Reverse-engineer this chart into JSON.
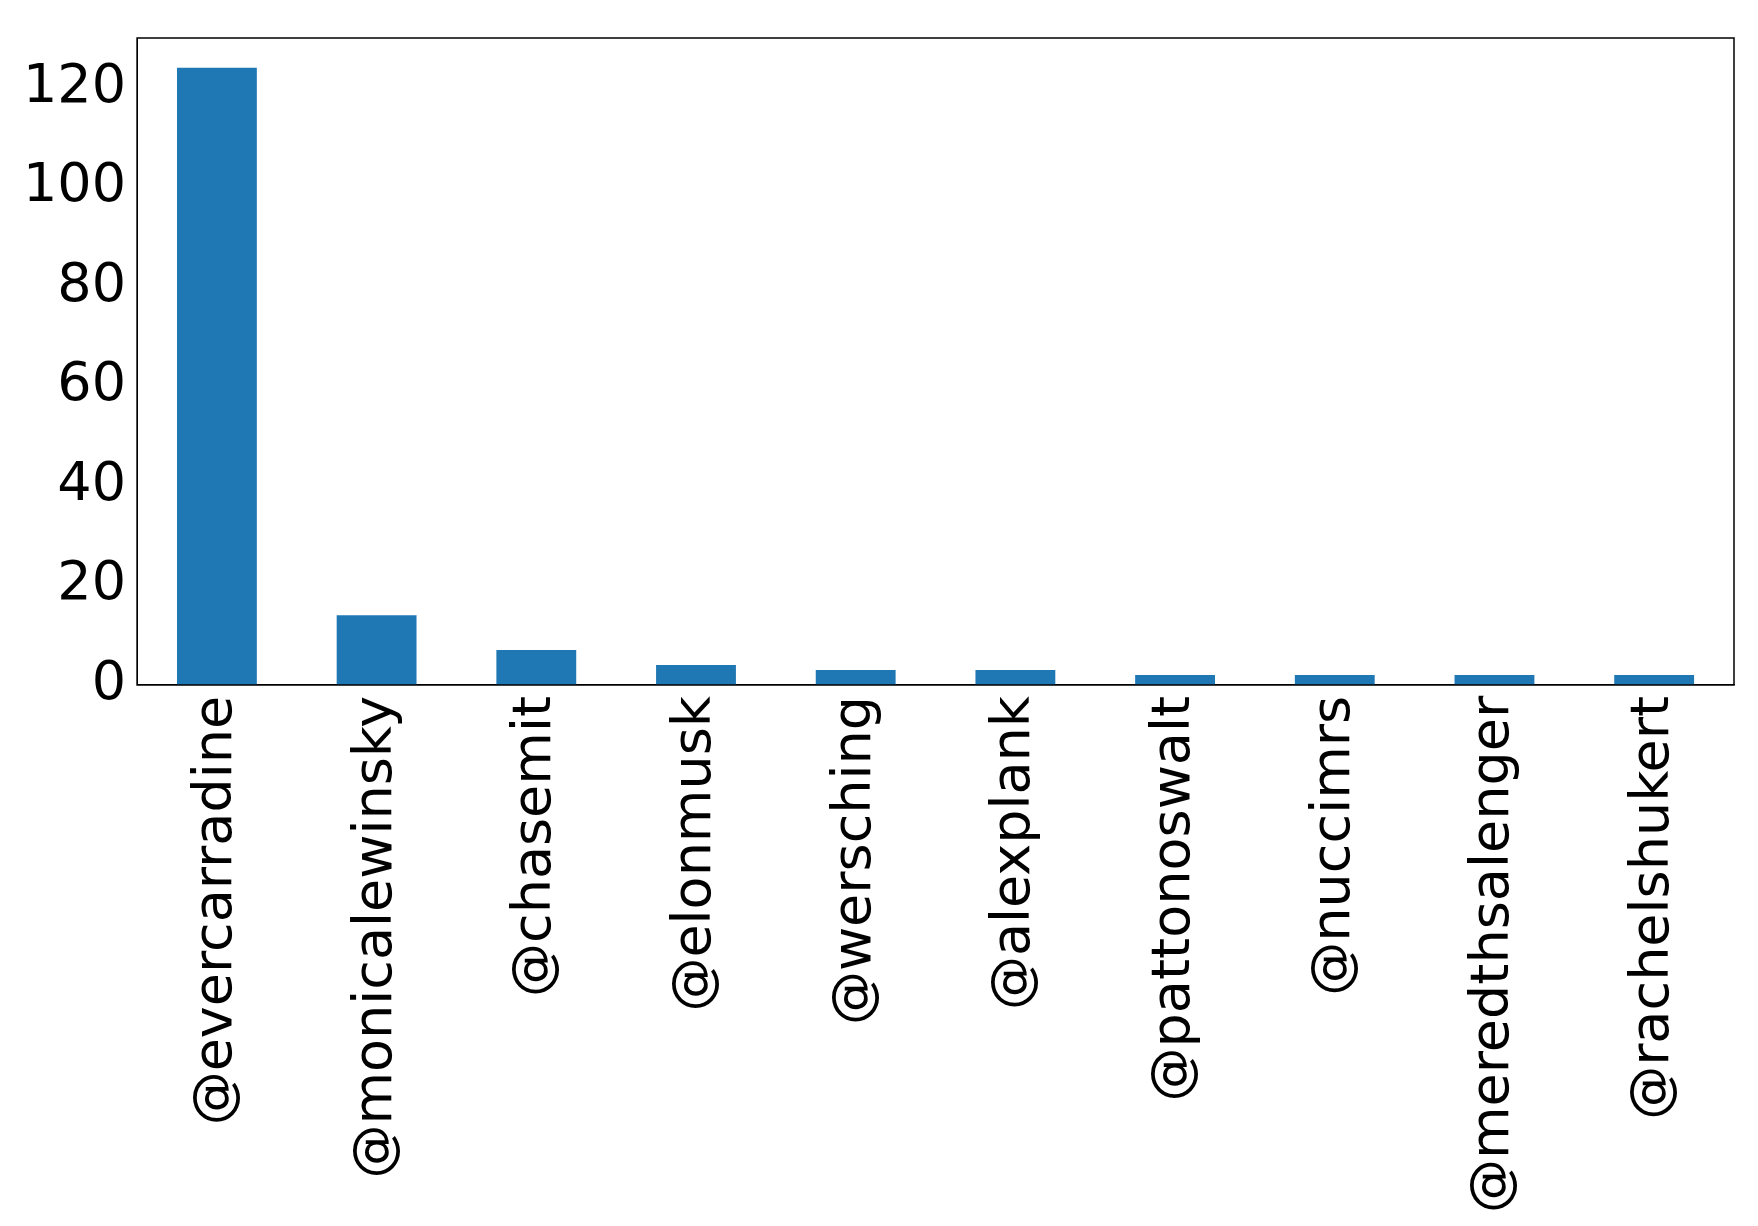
{
  "chart_data": {
    "type": "bar",
    "categories": [
      "@evercarradine",
      "@monicalewinsky",
      "@chasemit",
      "@elonmusk",
      "@wersching",
      "@alexplank",
      "@pattonoswalt",
      "@nuccimrs",
      "@meredthsalenger",
      "@rachelshukert"
    ],
    "values": [
      124,
      14,
      7,
      4,
      3,
      3,
      2,
      2,
      2,
      2
    ],
    "color": "#1f77b4",
    "ylim": [
      0,
      130
    ],
    "yticks": [
      0,
      20,
      40,
      60,
      80,
      100,
      120
    ],
    "grid": false,
    "legend": false
  }
}
